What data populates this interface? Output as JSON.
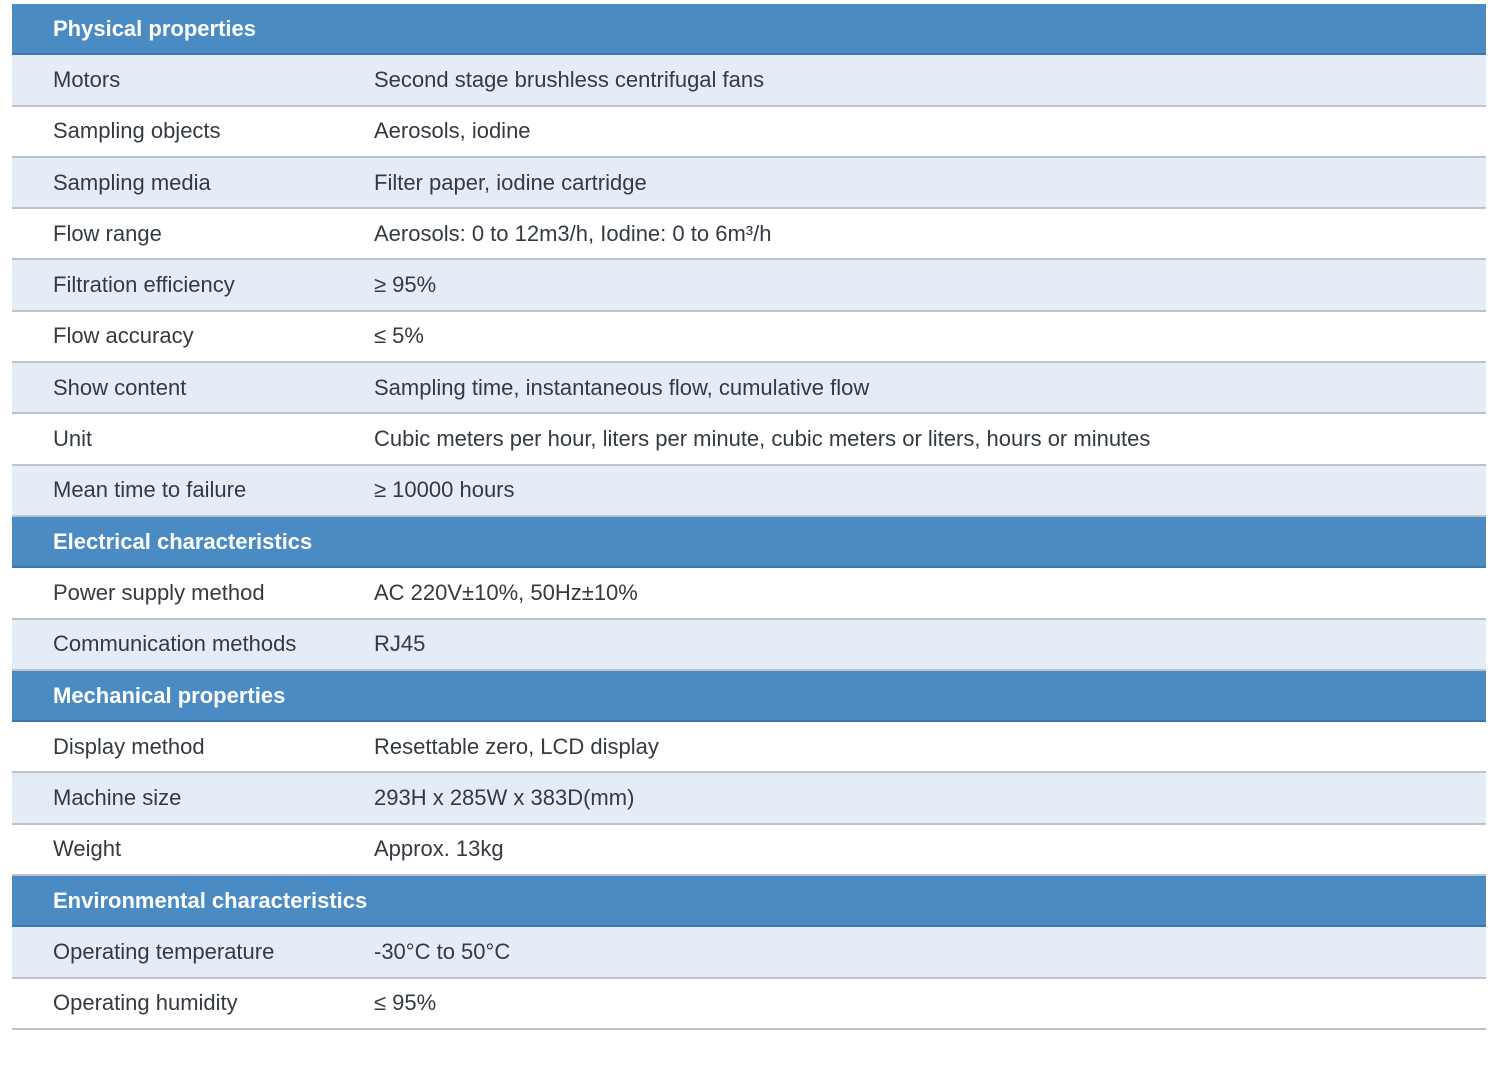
{
  "sections": [
    {
      "title": "Physical properties",
      "rows": [
        {
          "label": "Motors",
          "value": "Second stage brushless centrifugal fans"
        },
        {
          "label": "Sampling objects",
          "value": "Aerosols, iodine"
        },
        {
          "label": "Sampling media",
          "value": "Filter paper, iodine cartridge"
        },
        {
          "label": "Flow range",
          "value": "Aerosols: 0 to 12m3/h, Iodine: 0 to 6m³/h"
        },
        {
          "label": "Filtration efficiency",
          "value": "≥ 95%"
        },
        {
          "label": "Flow accuracy",
          "value": "≤ 5%"
        },
        {
          "label": "Show content",
          "value": "Sampling time, instantaneous flow, cumulative flow"
        },
        {
          "label": "Unit",
          "value": "Cubic meters per hour, liters per minute, cubic meters or liters, hours or minutes"
        },
        {
          "label": "Mean time to failure",
          "value": "≥ 10000 hours"
        }
      ]
    },
    {
      "title": "Electrical characteristics",
      "rows": [
        {
          "label": "Power supply method",
          "value": "AC 220V±10%, 50Hz±10%"
        },
        {
          "label": "Communication methods",
          "value": "RJ45"
        }
      ]
    },
    {
      "title": "Mechanical properties",
      "rows": [
        {
          "label": "Display method",
          "value": "Resettable zero, LCD display"
        },
        {
          "label": "Machine size",
          "value": "293H x 285W x 383D(mm)"
        },
        {
          "label": "Weight",
          "value": "Approx. 13kg"
        }
      ]
    },
    {
      "title": "Environmental characteristics",
      "rows": [
        {
          "label": "Operating temperature",
          "value": "-30°C to 50°C"
        },
        {
          "label": "Operating humidity",
          "value": "≤ 95%"
        }
      ]
    }
  ]
}
